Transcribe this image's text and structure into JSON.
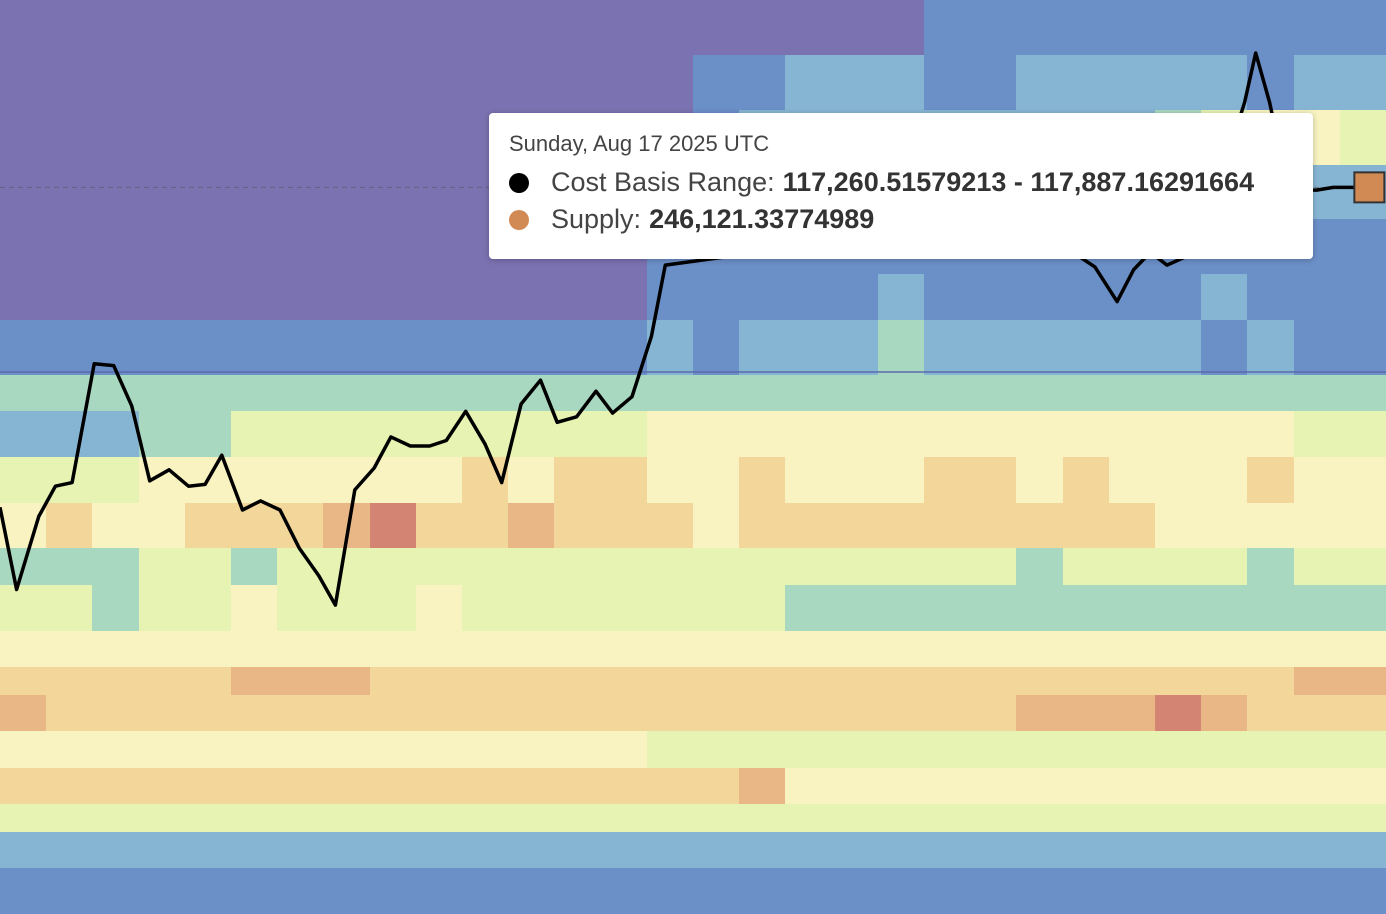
{
  "colors": {
    "background": "#7b72b1",
    "price_line": "#000000",
    "supply": "#d28a54",
    "heat_scale": [
      "#7b72b1",
      "#6b8fc7",
      "#86b5d3",
      "#a9d8c0",
      "#e6f3b3",
      "#f8f3c0",
      "#f2d69a",
      "#e8b785",
      "#d48473"
    ]
  },
  "tooltip": {
    "date": "Sunday, Aug 17 2025 UTC",
    "cost_basis": {
      "label": "Cost Basis Range:",
      "value": "117,260.51579213 - 117,887.16291664",
      "dot_color": "#000000"
    },
    "supply": {
      "label": "Supply:",
      "value": "246,121.33774989",
      "dot_color": "#d28a54"
    }
  },
  "chart_data": {
    "type": "heatmap",
    "title": "",
    "xlabel": "",
    "ylabel": "",
    "grid": false,
    "bands": [
      {
        "from": 0.0,
        "to": 0.06,
        "levels": [
          0,
          0,
          0,
          0,
          0,
          0,
          0,
          0,
          0,
          0,
          0,
          0,
          0,
          0,
          0,
          0,
          0,
          0,
          0,
          0,
          1,
          1,
          1,
          1,
          1,
          1,
          1,
          1,
          1,
          1
        ]
      },
      {
        "from": 0.06,
        "to": 0.12,
        "levels": [
          0,
          0,
          0,
          0,
          0,
          0,
          0,
          0,
          0,
          0,
          0,
          0,
          0,
          0,
          0,
          1,
          1,
          2,
          2,
          2,
          1,
          1,
          2,
          2,
          2,
          2,
          2,
          1,
          2,
          2
        ]
      },
      {
        "from": 0.12,
        "to": 0.18,
        "levels": [
          0,
          0,
          0,
          0,
          0,
          0,
          0,
          0,
          0,
          0,
          0,
          0,
          0,
          0,
          0,
          1,
          2,
          2,
          2,
          2,
          2,
          2,
          2,
          2,
          2,
          3,
          4,
          5,
          5,
          4
        ]
      },
      {
        "from": 0.18,
        "to": 0.24,
        "levels": [
          0,
          0,
          0,
          0,
          0,
          0,
          0,
          0,
          0,
          0,
          0,
          0,
          0,
          0,
          0,
          1,
          2,
          2,
          2,
          2,
          3,
          2,
          2,
          2,
          2,
          2,
          3,
          3,
          2,
          2
        ]
      },
      {
        "from": 0.24,
        "to": 0.3,
        "levels": [
          0,
          0,
          0,
          0,
          0,
          0,
          0,
          0,
          0,
          0,
          0,
          0,
          0,
          0,
          1,
          1,
          1,
          1,
          1,
          1,
          1,
          1,
          1,
          1,
          1,
          1,
          1,
          1,
          1,
          1
        ]
      },
      {
        "from": 0.3,
        "to": 0.35,
        "levels": [
          0,
          0,
          0,
          0,
          0,
          0,
          0,
          0,
          0,
          0,
          0,
          0,
          0,
          0,
          1,
          1,
          1,
          1,
          1,
          2,
          1,
          1,
          1,
          1,
          1,
          1,
          2,
          1,
          1,
          1
        ]
      },
      {
        "from": 0.35,
        "to": 0.41,
        "levels": [
          1,
          1,
          1,
          1,
          1,
          1,
          1,
          1,
          1,
          1,
          1,
          1,
          1,
          1,
          2,
          1,
          2,
          2,
          2,
          3,
          2,
          2,
          2,
          2,
          2,
          2,
          1,
          2,
          1,
          1
        ]
      },
      {
        "from": 0.41,
        "to": 0.45,
        "levels": [
          3,
          3,
          3,
          3,
          3,
          3,
          3,
          3,
          3,
          3,
          3,
          3,
          3,
          3,
          3,
          3,
          3,
          3,
          3,
          3,
          3,
          3,
          3,
          3,
          3,
          3,
          3,
          3,
          3,
          3
        ]
      },
      {
        "from": 0.45,
        "to": 0.5,
        "levels": [
          2,
          2,
          2,
          3,
          3,
          4,
          4,
          4,
          4,
          4,
          4,
          4,
          4,
          4,
          5,
          5,
          5,
          5,
          5,
          5,
          5,
          5,
          5,
          5,
          5,
          5,
          5,
          5,
          4,
          4
        ]
      },
      {
        "from": 0.5,
        "to": 0.55,
        "levels": [
          4,
          4,
          4,
          5,
          5,
          5,
          5,
          5,
          5,
          5,
          6,
          5,
          6,
          6,
          5,
          5,
          6,
          5,
          5,
          5,
          6,
          6,
          5,
          6,
          5,
          5,
          5,
          6,
          5,
          5
        ]
      },
      {
        "from": 0.55,
        "to": 0.6,
        "levels": [
          5,
          6,
          5,
          5,
          6,
          6,
          6,
          7,
          8,
          6,
          6,
          7,
          6,
          6,
          6,
          5,
          6,
          6,
          6,
          6,
          6,
          6,
          6,
          6,
          6,
          5,
          5,
          5,
          5,
          5
        ]
      },
      {
        "from": 0.6,
        "to": 0.64,
        "levels": [
          3,
          3,
          3,
          4,
          4,
          3,
          4,
          4,
          4,
          4,
          4,
          4,
          4,
          4,
          4,
          4,
          4,
          4,
          4,
          4,
          4,
          4,
          3,
          4,
          4,
          4,
          4,
          3,
          4,
          4
        ]
      },
      {
        "from": 0.64,
        "to": 0.69,
        "levels": [
          4,
          4,
          3,
          4,
          4,
          5,
          4,
          4,
          4,
          5,
          4,
          4,
          4,
          4,
          4,
          4,
          4,
          3,
          3,
          3,
          3,
          3,
          3,
          3,
          3,
          3,
          3,
          3,
          3,
          3
        ]
      },
      {
        "from": 0.69,
        "to": 0.73,
        "levels": [
          5,
          5,
          5,
          5,
          5,
          5,
          5,
          5,
          5,
          5,
          5,
          5,
          5,
          5,
          5,
          5,
          5,
          5,
          5,
          5,
          5,
          5,
          5,
          5,
          5,
          5,
          5,
          5,
          5,
          5
        ]
      },
      {
        "from": 0.73,
        "to": 0.76,
        "levels": [
          6,
          6,
          6,
          6,
          6,
          7,
          7,
          7,
          6,
          6,
          6,
          6,
          6,
          6,
          6,
          6,
          6,
          6,
          6,
          6,
          6,
          6,
          6,
          6,
          6,
          6,
          6,
          6,
          7,
          7
        ]
      },
      {
        "from": 0.76,
        "to": 0.8,
        "levels": [
          7,
          6,
          6,
          6,
          6,
          6,
          6,
          6,
          6,
          6,
          6,
          6,
          6,
          6,
          6,
          6,
          6,
          6,
          6,
          6,
          6,
          6,
          7,
          7,
          7,
          8,
          7,
          6,
          6,
          6
        ]
      },
      {
        "from": 0.8,
        "to": 0.84,
        "levels": [
          5,
          5,
          5,
          5,
          5,
          5,
          5,
          5,
          5,
          5,
          5,
          5,
          5,
          5,
          4,
          4,
          4,
          4,
          4,
          4,
          4,
          4,
          4,
          4,
          4,
          4,
          4,
          4,
          4,
          4
        ]
      },
      {
        "from": 0.84,
        "to": 0.88,
        "levels": [
          6,
          6,
          6,
          6,
          6,
          6,
          6,
          6,
          6,
          6,
          6,
          6,
          6,
          6,
          6,
          6,
          7,
          5,
          5,
          5,
          5,
          5,
          5,
          5,
          5,
          5,
          5,
          5,
          5,
          5
        ]
      },
      {
        "from": 0.88,
        "to": 0.91,
        "levels": [
          4,
          4,
          4,
          4,
          4,
          4,
          4,
          4,
          4,
          4,
          4,
          4,
          4,
          4,
          4,
          4,
          4,
          4,
          4,
          4,
          4,
          4,
          4,
          4,
          4,
          4,
          4,
          4,
          4,
          4
        ]
      },
      {
        "from": 0.91,
        "to": 0.95,
        "levels": [
          2,
          2,
          2,
          2,
          2,
          2,
          2,
          2,
          2,
          2,
          2,
          2,
          2,
          2,
          2,
          2,
          2,
          2,
          2,
          2,
          2,
          2,
          2,
          2,
          2,
          2,
          2,
          2,
          2,
          2
        ]
      },
      {
        "from": 0.95,
        "to": 1.0,
        "levels": [
          1,
          1,
          1,
          1,
          1,
          1,
          1,
          1,
          1,
          1,
          1,
          1,
          1,
          1,
          1,
          1,
          1,
          1,
          1,
          1,
          1,
          1,
          1,
          1,
          1,
          1,
          1,
          1,
          1,
          1
        ]
      }
    ],
    "price_line": {
      "x": [
        0.0,
        0.012,
        0.028,
        0.04,
        0.052,
        0.068,
        0.082,
        0.095,
        0.108,
        0.122,
        0.136,
        0.148,
        0.16,
        0.175,
        0.188,
        0.202,
        0.216,
        0.23,
        0.242,
        0.256,
        0.27,
        0.282,
        0.296,
        0.31,
        0.322,
        0.336,
        0.35,
        0.362,
        0.376,
        0.39,
        0.402,
        0.416,
        0.43,
        0.442,
        0.456,
        0.47,
        0.48,
        0.77,
        0.778,
        0.79,
        0.806,
        0.818,
        0.83,
        0.842,
        0.854,
        0.866,
        0.878,
        0.888,
        0.898,
        0.906,
        0.916,
        0.926,
        0.938,
        0.95,
        0.962,
        0.98
      ],
      "y": [
        0.555,
        0.645,
        0.565,
        0.532,
        0.528,
        0.398,
        0.4,
        0.444,
        0.526,
        0.514,
        0.532,
        0.53,
        0.498,
        0.558,
        0.548,
        0.558,
        0.6,
        0.63,
        0.662,
        0.536,
        0.512,
        0.478,
        0.488,
        0.488,
        0.482,
        0.45,
        0.486,
        0.528,
        0.442,
        0.416,
        0.462,
        0.456,
        0.428,
        0.452,
        0.434,
        0.368,
        0.29,
        0.23,
        0.28,
        0.292,
        0.33,
        0.295,
        0.276,
        0.29,
        0.282,
        0.262,
        0.22,
        0.16,
        0.112,
        0.058,
        0.112,
        0.182,
        0.208,
        0.208,
        0.205,
        0.205
      ]
    },
    "highlight": {
      "y": 0.205,
      "marker_x": 0.988
    },
    "price_band_line_y": 0.407
  }
}
